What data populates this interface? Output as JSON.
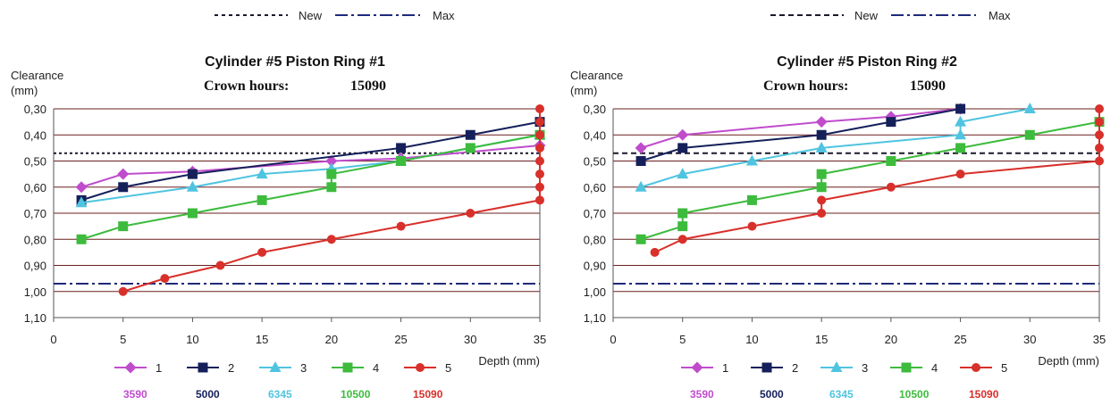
{
  "top_legend": {
    "new_label": "New",
    "max_label": "Max",
    "new_color": "#1a1a2e",
    "max_color": "#1f2a7a"
  },
  "series_style": [
    {
      "color": "#c04ccc",
      "marker": "diamond"
    },
    {
      "color": "#15205a",
      "marker": "square"
    },
    {
      "color": "#4fc4e0",
      "marker": "triangle"
    },
    {
      "color": "#3dbb3d",
      "marker": "square"
    },
    {
      "color": "#d8302a",
      "marker": "circle"
    }
  ],
  "chart_data": [
    {
      "type": "line",
      "title": "Cylinder #5 Piston Ring #1",
      "crown_label": "Crown hours:",
      "crown_value": "15090",
      "ylabel_line1": "Clearance",
      "ylabel_line2": "(mm)",
      "xlabel": "Depth (mm)",
      "xlim": [
        0,
        35
      ],
      "ylim": [
        0.3,
        1.1
      ],
      "y_inverted": true,
      "x_ticks": [
        "0",
        "5",
        "10",
        "15",
        "20",
        "25",
        "30",
        "35"
      ],
      "y_ticks": [
        "0,30",
        "0,40",
        "0,50",
        "0,60",
        "0,70",
        "0,80",
        "0,90",
        "1,00",
        "1,10"
      ],
      "grid": true,
      "reference_lines": [
        {
          "name": "New",
          "y": 0.47,
          "style": "dotted"
        },
        {
          "name": "Max",
          "y": 0.97,
          "style": "dashdot"
        }
      ],
      "series": [
        {
          "name": "1",
          "hours": "3590",
          "x": [
            2,
            5,
            10,
            20,
            25,
            35
          ],
          "y": [
            0.6,
            0.55,
            0.54,
            0.5,
            0.49,
            0.44
          ]
        },
        {
          "name": "2",
          "hours": "5000",
          "x": [
            2,
            5,
            10,
            25,
            30,
            35
          ],
          "y": [
            0.65,
            0.6,
            0.55,
            0.45,
            0.4,
            0.35
          ]
        },
        {
          "name": "3",
          "hours": "6345",
          "x": [
            2,
            10,
            15,
            20,
            25,
            35
          ],
          "y": [
            0.66,
            0.6,
            0.55,
            0.53,
            0.5,
            0.4
          ]
        },
        {
          "name": "4",
          "hours": "10500",
          "x": [
            2,
            5,
            10,
            15,
            20,
            20,
            25,
            30,
            35
          ],
          "y": [
            0.8,
            0.75,
            0.7,
            0.65,
            0.6,
            0.55,
            0.5,
            0.45,
            0.4
          ]
        },
        {
          "name": "5",
          "hours": "15090",
          "x": [
            5,
            8,
            12,
            15,
            20,
            25,
            30,
            35,
            35,
            35,
            35,
            35,
            35,
            35,
            35
          ],
          "y": [
            1.0,
            0.95,
            0.9,
            0.85,
            0.8,
            0.75,
            0.7,
            0.65,
            0.6,
            0.55,
            0.5,
            0.45,
            0.4,
            0.35,
            0.3
          ]
        }
      ]
    },
    {
      "type": "line",
      "title": "Cylinder #5 Piston Ring #2",
      "crown_label": "Crown hours:",
      "crown_value": "15090",
      "ylabel_line1": "Clearance",
      "ylabel_line2": "(mm)",
      "xlabel": "Depth (mm)",
      "xlim": [
        0,
        35
      ],
      "ylim": [
        0.3,
        1.1
      ],
      "y_inverted": true,
      "x_ticks": [
        "0",
        "5",
        "10",
        "15",
        "20",
        "25",
        "30",
        "35"
      ],
      "y_ticks": [
        "0,30",
        "0,40",
        "0,50",
        "0,60",
        "0,70",
        "0,80",
        "0,90",
        "1,00",
        "1,10"
      ],
      "grid": true,
      "reference_lines": [
        {
          "name": "New",
          "y": 0.47,
          "style": "dashed"
        },
        {
          "name": "Max",
          "y": 0.97,
          "style": "dashdot"
        }
      ],
      "series": [
        {
          "name": "1",
          "hours": "3590",
          "x": [
            2,
            5,
            15,
            20,
            25
          ],
          "y": [
            0.45,
            0.4,
            0.35,
            0.33,
            0.3
          ]
        },
        {
          "name": "2",
          "hours": "5000",
          "x": [
            2,
            5,
            15,
            20,
            25
          ],
          "y": [
            0.5,
            0.45,
            0.4,
            0.35,
            0.3
          ]
        },
        {
          "name": "3",
          "hours": "6345",
          "x": [
            2,
            5,
            10,
            15,
            25,
            25,
            30
          ],
          "y": [
            0.6,
            0.55,
            0.5,
            0.45,
            0.4,
            0.35,
            0.3
          ]
        },
        {
          "name": "4",
          "hours": "10500",
          "x": [
            2,
            5,
            5,
            10,
            15,
            15,
            20,
            25,
            30,
            35
          ],
          "y": [
            0.8,
            0.75,
            0.7,
            0.65,
            0.6,
            0.55,
            0.5,
            0.45,
            0.4,
            0.35
          ]
        },
        {
          "name": "5",
          "hours": "15090",
          "x": [
            3,
            5,
            10,
            15,
            15,
            20,
            25,
            35,
            35,
            35,
            35,
            35
          ],
          "y": [
            0.85,
            0.8,
            0.75,
            0.7,
            0.65,
            0.6,
            0.55,
            0.5,
            0.45,
            0.4,
            0.35,
            0.3
          ]
        }
      ]
    }
  ]
}
